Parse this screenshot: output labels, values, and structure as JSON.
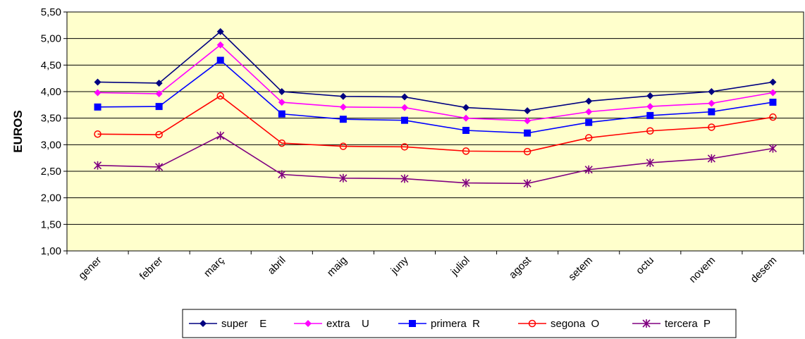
{
  "chart_data": {
    "type": "line",
    "ylabel": "EUROS",
    "ylim": [
      1.0,
      5.5
    ],
    "ytick_step": 0.5,
    "ytick_labels": [
      "1,00",
      "1,50",
      "2,00",
      "2,50",
      "3,00",
      "3,50",
      "4,00",
      "4,50",
      "5,00",
      "5,50"
    ],
    "categories": [
      "gener",
      "febrer",
      "març",
      "abril",
      "maig",
      "juny",
      "juliol",
      "agost",
      "setem",
      "octu",
      "novem",
      "desem"
    ],
    "plot_background": "#FFFFCC",
    "grid": true,
    "legend_position": "bottom",
    "series": [
      {
        "name": "super    E",
        "color": "#000080",
        "marker": "diamond",
        "values": [
          4.18,
          4.16,
          5.13,
          4.0,
          3.91,
          3.9,
          3.7,
          3.64,
          3.82,
          3.92,
          4.0,
          4.18
        ]
      },
      {
        "name": "extra    U",
        "color": "#FF00FF",
        "marker": "diamond",
        "values": [
          3.98,
          3.96,
          4.88,
          3.8,
          3.71,
          3.7,
          3.5,
          3.45,
          3.62,
          3.72,
          3.78,
          3.98
        ]
      },
      {
        "name": "primera  R",
        "color": "#0000FF",
        "marker": "square",
        "values": [
          3.71,
          3.72,
          4.59,
          3.58,
          3.48,
          3.46,
          3.27,
          3.22,
          3.42,
          3.55,
          3.62,
          3.8
        ]
      },
      {
        "name": "segona  O",
        "color": "#FF0000",
        "marker": "circle",
        "values": [
          3.2,
          3.19,
          3.92,
          3.03,
          2.97,
          2.96,
          2.88,
          2.87,
          3.13,
          3.26,
          3.33,
          3.52
        ]
      },
      {
        "name": "tercera  P",
        "color": "#800080",
        "marker": "asterisk",
        "values": [
          2.61,
          2.58,
          3.17,
          2.44,
          2.37,
          2.36,
          2.28,
          2.27,
          2.53,
          2.66,
          2.74,
          2.93
        ]
      }
    ]
  }
}
